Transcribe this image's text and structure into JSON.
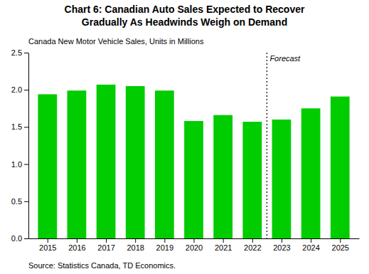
{
  "chart_data": {
    "type": "bar",
    "title": [
      "Chart 6: Canadian Auto Sales Expected to Recover",
      "Gradually As Headwinds Weigh on Demand"
    ],
    "subtitle": "Canada New Motor Vehicle Sales, Units in Millions",
    "x": [
      2015,
      2016,
      2017,
      2018,
      2019,
      2020,
      2021,
      2022,
      2023,
      2024,
      2025
    ],
    "values": [
      1.94,
      1.99,
      2.07,
      2.05,
      1.99,
      1.58,
      1.66,
      1.57,
      1.6,
      1.75,
      1.91
    ],
    "color": "#00CC00",
    "xlim": [
      2014.35,
      2025.65
    ],
    "xticks": [
      2015,
      2016,
      2017,
      2018,
      2019,
      2020,
      2021,
      2022,
      2023,
      2024,
      2025
    ],
    "ylim": [
      0,
      2.5
    ],
    "yticks": [
      {
        "value": 0,
        "label": "0.0"
      },
      0.5,
      {
        "value": 1,
        "label": "1.0"
      },
      1.5,
      {
        "value": 2,
        "label": "2.0"
      },
      2.5
    ],
    "grid": false,
    "annotations": [
      {
        "text": "Forecast",
        "x": 2022.5
      },
      {
        "text": "Source: Statistics Canada, TD Economics."
      }
    ]
  }
}
